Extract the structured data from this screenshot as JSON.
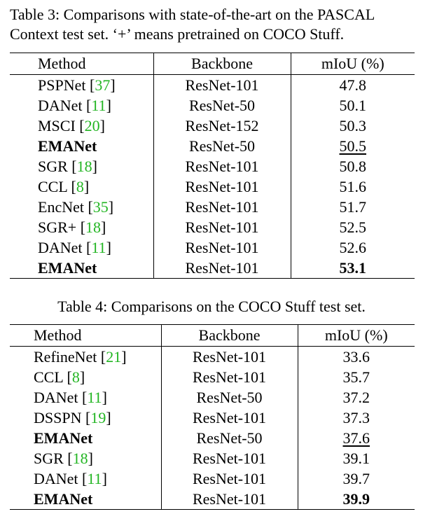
{
  "table3": {
    "caption_line1": "Table 3: Comparisons with state-of-the-art on the PASCAL",
    "caption_line2": "Context test set. ‘+’ means pretrained on COCO Stuff.",
    "headers": [
      "Method",
      "Backbone",
      "mIoU (%)"
    ],
    "rows": [
      {
        "method": "PSPNet",
        "ref": "37",
        "backbone": "ResNet-101",
        "miou": "47.8",
        "bold": false,
        "underline": false
      },
      {
        "method": "DANet",
        "ref": "11",
        "backbone": "ResNet-50",
        "miou": "50.1",
        "bold": false,
        "underline": false
      },
      {
        "method": "MSCI",
        "ref": "20",
        "backbone": "ResNet-152",
        "miou": "50.3",
        "bold": false,
        "underline": false
      },
      {
        "method": "EMANet",
        "ref": "",
        "backbone": "ResNet-50",
        "miou": "50.5",
        "bold": true,
        "underline": true
      },
      {
        "method": "SGR",
        "ref": "18",
        "backbone": "ResNet-101",
        "miou": "50.8",
        "bold": false,
        "underline": false
      },
      {
        "method": "CCL",
        "ref": "8",
        "backbone": "ResNet-101",
        "miou": "51.6",
        "bold": false,
        "underline": false
      },
      {
        "method": "EncNet",
        "ref": "35",
        "backbone": "ResNet-101",
        "miou": "51.7",
        "bold": false,
        "underline": false
      },
      {
        "method": "SGR+",
        "ref": "18",
        "backbone": "ResNet-101",
        "miou": "52.5",
        "bold": false,
        "underline": false
      },
      {
        "method": "DANet",
        "ref": "11",
        "backbone": "ResNet-101",
        "miou": "52.6",
        "bold": false,
        "underline": false
      },
      {
        "method": "EMANet",
        "ref": "",
        "backbone": "ResNet-101",
        "miou": "53.1",
        "bold": true,
        "boldValue": true
      }
    ]
  },
  "table4": {
    "caption": "Table 4: Comparisons on the COCO Stuff test set.",
    "headers": [
      "Method",
      "Backbone",
      "mIoU (%)"
    ],
    "rows": [
      {
        "method": "RefineNet",
        "ref": "21",
        "backbone": "ResNet-101",
        "miou": "33.6",
        "bold": false,
        "underline": false
      },
      {
        "method": "CCL",
        "ref": "8",
        "backbone": "ResNet-101",
        "miou": "35.7",
        "bold": false,
        "underline": false
      },
      {
        "method": "DANet",
        "ref": "11",
        "backbone": "ResNet-50",
        "miou": "37.2",
        "bold": false,
        "underline": false
      },
      {
        "method": "DSSPN",
        "ref": "19",
        "backbone": "ResNet-101",
        "miou": "37.3",
        "bold": false,
        "underline": false
      },
      {
        "method": "EMANet",
        "ref": "",
        "backbone": "ResNet-50",
        "miou": "37.6",
        "bold": true,
        "underline": true
      },
      {
        "method": "SGR",
        "ref": "18",
        "backbone": "ResNet-101",
        "miou": "39.1",
        "bold": false,
        "underline": false
      },
      {
        "method": "DANet",
        "ref": "11",
        "backbone": "ResNet-101",
        "miou": "39.7",
        "bold": false,
        "underline": false
      },
      {
        "method": "EMANet",
        "ref": "",
        "backbone": "ResNet-101",
        "miou": "39.9",
        "bold": true,
        "boldValue": true
      }
    ]
  },
  "colors": {
    "citation": "#22b522",
    "text": "#000000"
  }
}
